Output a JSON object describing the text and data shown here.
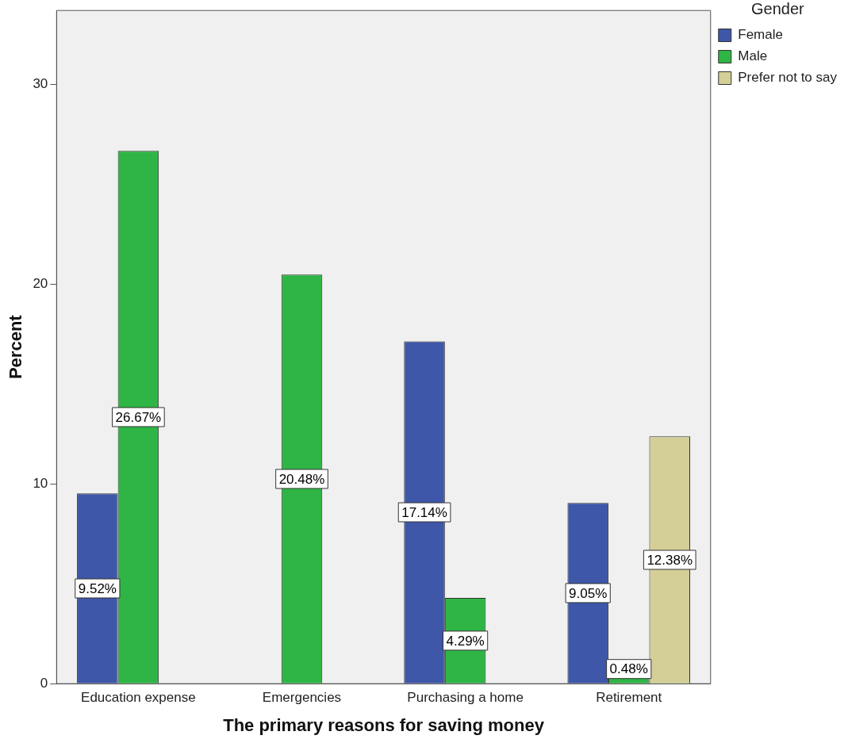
{
  "chart_data": {
    "type": "bar",
    "xlabel": "The primary reasons for saving money",
    "ylabel": "Percent",
    "legend_title": "Gender",
    "legend": "top right",
    "grid": false,
    "categories": [
      "Education expense",
      "Emergencies",
      "Purchasing a home",
      "Retirement"
    ],
    "ylim": [
      0,
      33.7
    ],
    "yticks": [
      0,
      10,
      20,
      30
    ],
    "series": [
      {
        "name": "Female",
        "color": "#3f57a8",
        "values": [
          9.52,
          null,
          17.14,
          9.05
        ],
        "value_labels": [
          "9.52%",
          null,
          "17.14%",
          "9.05%"
        ]
      },
      {
        "name": "Male",
        "color": "#2fb545",
        "values": [
          26.67,
          20.48,
          4.29,
          0.48
        ],
        "value_labels": [
          "26.67%",
          "20.48%",
          "4.29%",
          "0.48%"
        ]
      },
      {
        "name": "Prefer not to say",
        "color": "#d4cf96",
        "values": [
          null,
          null,
          null,
          12.38
        ],
        "value_labels": [
          null,
          null,
          null,
          "12.38%"
        ]
      }
    ]
  }
}
